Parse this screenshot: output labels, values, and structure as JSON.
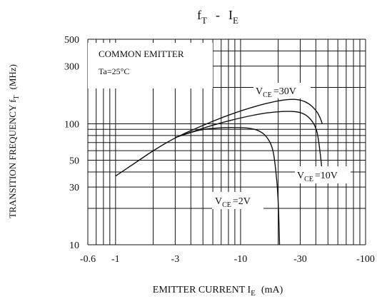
{
  "chart_data": {
    "type": "line",
    "title": {
      "main": "f",
      "main_sub": "T",
      "sep": "-",
      "second": "I",
      "second_sub": "E"
    },
    "ylabel": {
      "main": "TRANSITION FREQUENCY f",
      "sub": "T",
      "unit": "(MHz)"
    },
    "xlabel": {
      "main": "EMITTER CURRENT I",
      "sub": "E",
      "unit": "(mA)"
    },
    "x_scale": "log",
    "y_scale": "log",
    "x_axis_direction": "negative (emitter current magnitude increases to the right)",
    "xlim": [
      -0.6,
      -100
    ],
    "ylim": [
      10,
      500
    ],
    "x_ticks": [
      {
        "value": 0.6,
        "label": "-0.6"
      },
      {
        "value": 1,
        "label": "-1"
      },
      {
        "value": 3,
        "label": "-3"
      },
      {
        "value": 10,
        "label": "-10"
      },
      {
        "value": 30,
        "label": "-30"
      },
      {
        "value": 100,
        "label": "-100"
      }
    ],
    "y_ticks": [
      {
        "value": 10,
        "label": "10"
      },
      {
        "value": 30,
        "label": "30"
      },
      {
        "value": 50,
        "label": "50"
      },
      {
        "value": 100,
        "label": "100"
      },
      {
        "value": 300,
        "label": "300"
      },
      {
        "value": 500,
        "label": "500"
      }
    ],
    "grid": true,
    "annotation": {
      "line1": "COMMON EMITTER",
      "line2": "Ta=25°C"
    },
    "series": [
      {
        "label": {
          "prefix": "V",
          "sub": "CE",
          "value": "=30V"
        },
        "points": [
          [
            -1,
            37
          ],
          [
            -1.5,
            49
          ],
          [
            -2,
            60
          ],
          [
            -3,
            77
          ],
          [
            -5,
            97
          ],
          [
            -7,
            112
          ],
          [
            -10,
            128
          ],
          [
            -15,
            145
          ],
          [
            -20,
            155
          ],
          [
            -25,
            160
          ],
          [
            -30,
            158
          ],
          [
            -35,
            148
          ],
          [
            -40,
            130
          ],
          [
            -43,
            115
          ],
          [
            -45,
            100
          ]
        ]
      },
      {
        "label": {
          "prefix": "V",
          "sub": "CE",
          "value": "=10V"
        },
        "points": [
          [
            -3,
            77
          ],
          [
            -5,
            92
          ],
          [
            -7,
            102
          ],
          [
            -10,
            112
          ],
          [
            -15,
            122
          ],
          [
            -20,
            126
          ],
          [
            -25,
            127
          ],
          [
            -30,
            125
          ],
          [
            -35,
            115
          ],
          [
            -40,
            95
          ],
          [
            -42,
            75
          ],
          [
            -44,
            50
          ],
          [
            -45,
            40
          ]
        ]
      },
      {
        "label": {
          "prefix": "V",
          "sub": "CE",
          "value": "=2V"
        },
        "points": [
          [
            -3,
            77
          ],
          [
            -4,
            85
          ],
          [
            -5,
            90
          ],
          [
            -7,
            93
          ],
          [
            -10,
            93
          ],
          [
            -12,
            92
          ],
          [
            -14,
            88
          ],
          [
            -16,
            80
          ],
          [
            -18,
            65
          ],
          [
            -19,
            45
          ],
          [
            -20,
            25
          ],
          [
            -20.5,
            10
          ]
        ]
      }
    ]
  }
}
